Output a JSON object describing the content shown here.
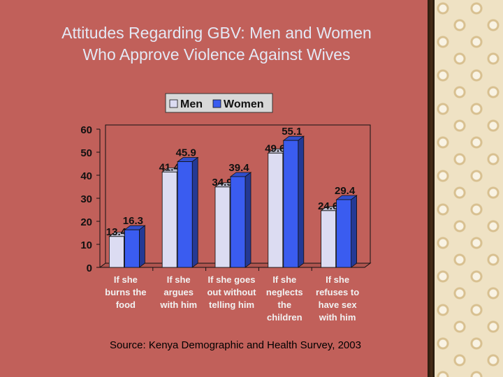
{
  "slide": {
    "title_lines": [
      "Attitudes Regarding GBV: Men and Women",
      "Who Approve Violence Against Wives"
    ],
    "source": "Source: Kenya Demographic and Health Survey, 2003"
  },
  "colors": {
    "background": "#c1605a",
    "men": "#dcdcf2",
    "women": "#3a5cf0",
    "title_text": "#e4e8f4"
  },
  "chart_data": {
    "type": "bar",
    "categories": [
      [
        "If she",
        "burns the",
        "food"
      ],
      [
        "If she",
        "argues",
        "with him"
      ],
      [
        "If she goes",
        "out without",
        "telling him"
      ],
      [
        "If she",
        "neglects",
        "the",
        "children"
      ],
      [
        "If she",
        "refuses to",
        "have sex",
        "with him"
      ]
    ],
    "series": [
      {
        "name": "Men",
        "values": [
          13.4,
          41.4,
          34.9,
          49.6,
          24.6
        ]
      },
      {
        "name": "Women",
        "values": [
          16.3,
          45.9,
          39.4,
          55.1,
          29.4
        ]
      }
    ],
    "ylim": [
      0,
      60
    ],
    "yticks": [
      0,
      10,
      20,
      30,
      40,
      50,
      60
    ],
    "legend_position": "top",
    "grid": false
  }
}
